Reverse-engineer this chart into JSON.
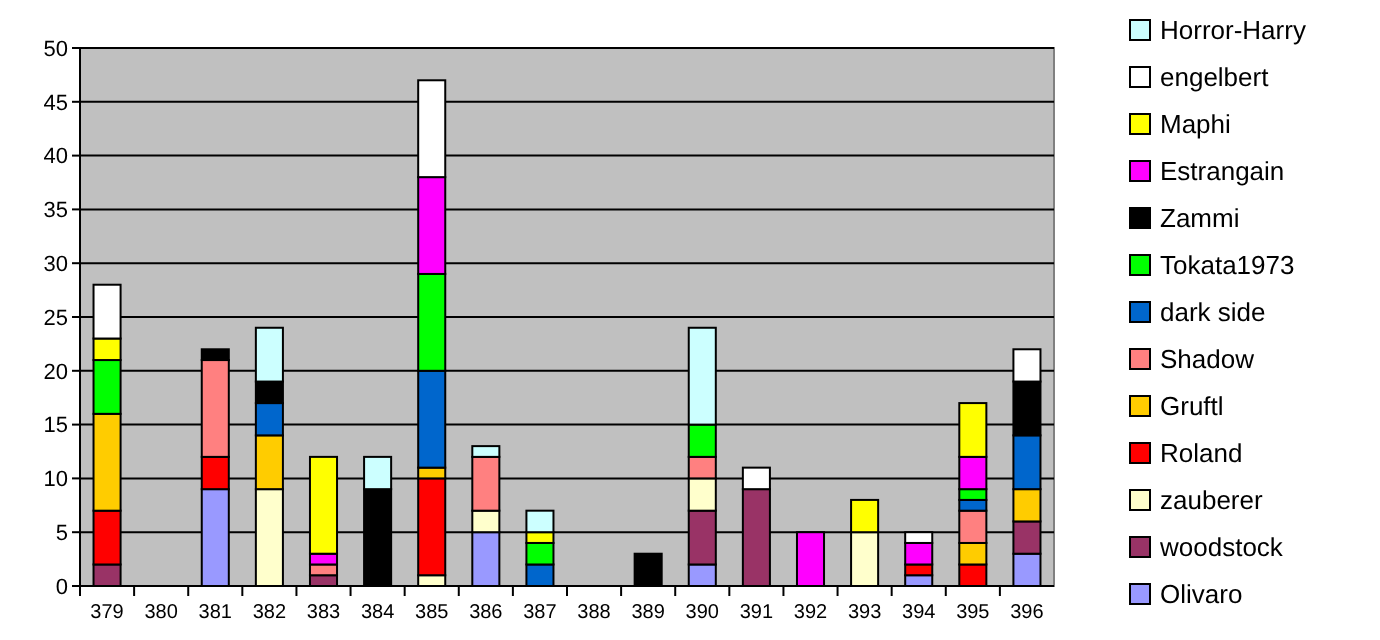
{
  "chart_data": {
    "type": "bar",
    "stacked": true,
    "categories": [
      "379",
      "380",
      "381",
      "382",
      "383",
      "384",
      "385",
      "386",
      "387",
      "388",
      "389",
      "390",
      "391",
      "392",
      "393",
      "394",
      "395",
      "396"
    ],
    "ylim": [
      0,
      50
    ],
    "yticks": [
      0,
      5,
      10,
      15,
      20,
      25,
      30,
      35,
      40,
      45,
      50
    ],
    "grid": "y",
    "legend": "right",
    "series": [
      {
        "name": "Olivaro",
        "color": "#9999ff",
        "values": [
          null,
          null,
          9,
          null,
          null,
          null,
          null,
          5,
          null,
          null,
          null,
          2,
          null,
          null,
          null,
          1,
          null,
          3
        ]
      },
      {
        "name": "woodstock",
        "color": "#993366",
        "values": [
          2,
          null,
          null,
          null,
          1,
          null,
          null,
          null,
          null,
          null,
          null,
          5,
          9,
          null,
          null,
          null,
          null,
          3
        ]
      },
      {
        "name": "zauberer",
        "color": "#ffffcc",
        "values": [
          null,
          null,
          null,
          9,
          null,
          null,
          1,
          2,
          null,
          null,
          null,
          3,
          null,
          null,
          5,
          null,
          null,
          null
        ]
      },
      {
        "name": "Roland",
        "color": "#ff0000",
        "values": [
          5,
          null,
          3,
          null,
          null,
          null,
          9,
          null,
          null,
          null,
          null,
          null,
          null,
          null,
          null,
          1,
          2,
          null
        ]
      },
      {
        "name": "Gruftl",
        "color": "#ffcc00",
        "values": [
          9,
          null,
          null,
          5,
          null,
          null,
          1,
          null,
          null,
          null,
          null,
          null,
          null,
          null,
          null,
          null,
          2,
          3
        ]
      },
      {
        "name": "Shadow",
        "color": "#ff8080",
        "values": [
          null,
          null,
          9,
          null,
          1,
          null,
          null,
          5,
          null,
          null,
          null,
          2,
          null,
          null,
          null,
          null,
          3,
          null
        ]
      },
      {
        "name": "dark side",
        "color": "#0066cc",
        "values": [
          null,
          null,
          null,
          3,
          null,
          null,
          9,
          null,
          2,
          null,
          null,
          null,
          null,
          null,
          null,
          null,
          1,
          5
        ]
      },
      {
        "name": "Tokata1973",
        "color": "#00ff00",
        "values": [
          5,
          null,
          null,
          null,
          null,
          null,
          9,
          null,
          2,
          null,
          null,
          3,
          null,
          null,
          null,
          null,
          1,
          null
        ]
      },
      {
        "name": "Zammi",
        "color": "#000000",
        "values": [
          null,
          null,
          1,
          2,
          null,
          9,
          null,
          null,
          null,
          null,
          3,
          null,
          null,
          null,
          null,
          null,
          null,
          5
        ]
      },
      {
        "name": "Estrangain",
        "color": "#ff00ff",
        "values": [
          null,
          null,
          null,
          null,
          1,
          null,
          9,
          null,
          null,
          null,
          null,
          null,
          null,
          5,
          null,
          2,
          3,
          null
        ]
      },
      {
        "name": "Maphi",
        "color": "#ffff00",
        "values": [
          2,
          null,
          null,
          null,
          9,
          null,
          null,
          null,
          1,
          null,
          null,
          null,
          null,
          null,
          3,
          null,
          5,
          null
        ]
      },
      {
        "name": "engelbert",
        "color": "#ffffff",
        "values": [
          5,
          null,
          null,
          null,
          null,
          null,
          9,
          null,
          null,
          null,
          null,
          null,
          2,
          null,
          null,
          1,
          null,
          3
        ]
      },
      {
        "name": "Horror-Harry",
        "color": "#ccffff",
        "values": [
          null,
          null,
          null,
          5,
          null,
          3,
          null,
          1,
          2,
          null,
          null,
          9,
          null,
          null,
          null,
          null,
          null,
          null
        ]
      }
    ]
  }
}
